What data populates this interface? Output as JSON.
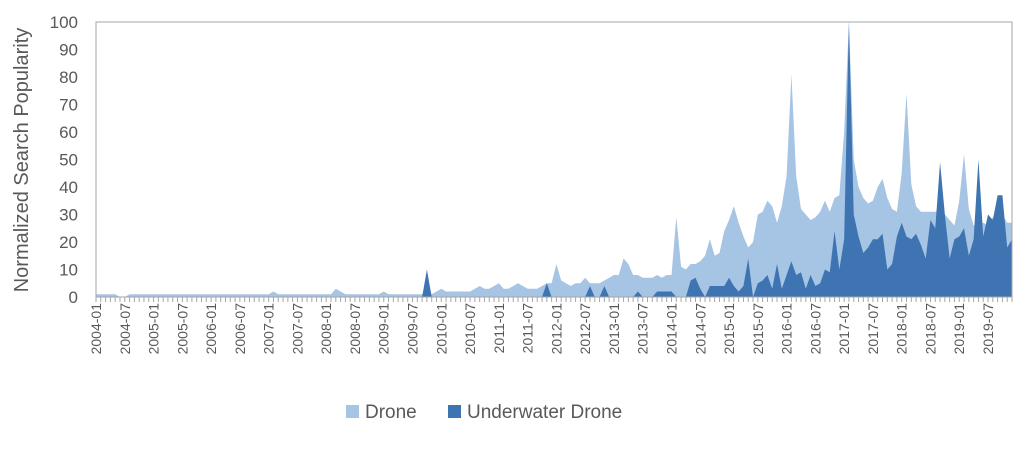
{
  "chart_data": {
    "type": "area",
    "title": "",
    "xlabel": "",
    "ylabel": "Normalized Search Popularity",
    "ylim": [
      0,
      100
    ],
    "yticks": [
      0,
      10,
      20,
      30,
      40,
      50,
      60,
      70,
      80,
      90,
      100
    ],
    "x_start": "2004-01",
    "x_end": "2019-12",
    "x_interval": "monthly",
    "xtick_labels": [
      "2004-01",
      "2004-07",
      "2005-01",
      "2005-07",
      "2006-01",
      "2006-07",
      "2007-01",
      "2007-07",
      "2008-01",
      "2008-07",
      "2009-01",
      "2009-07",
      "2010-01",
      "2010-07",
      "2011-01",
      "2011-07",
      "2012-01",
      "2012-07",
      "2013-01",
      "2013-07",
      "2014-01",
      "2014-07",
      "2015-01",
      "2015-07",
      "2016-01",
      "2016-07",
      "2017-01",
      "2017-07",
      "2018-01",
      "2018-07",
      "2019-01",
      "2019-07"
    ],
    "grid": false,
    "legend_position": "bottom",
    "series": [
      {
        "name": "Drone",
        "color": "#a6c4e4",
        "values": [
          1,
          1,
          1,
          1,
          1,
          0,
          0,
          1,
          1,
          1,
          1,
          1,
          1,
          1,
          1,
          1,
          1,
          1,
          1,
          1,
          1,
          1,
          1,
          1,
          1,
          1,
          1,
          1,
          1,
          1,
          1,
          1,
          1,
          1,
          1,
          1,
          1,
          2,
          1,
          1,
          1,
          1,
          1,
          1,
          1,
          1,
          1,
          1,
          1,
          1,
          3,
          2,
          1,
          1,
          1,
          1,
          1,
          1,
          1,
          1,
          2,
          1,
          1,
          1,
          1,
          1,
          1,
          1,
          1,
          3,
          1,
          2,
          3,
          2,
          2,
          2,
          2,
          2,
          2,
          3,
          4,
          3,
          3,
          4,
          5,
          3,
          3,
          4,
          5,
          4,
          3,
          3,
          3,
          4,
          5,
          5,
          12,
          6,
          5,
          4,
          5,
          5,
          7,
          5,
          5,
          5,
          6,
          7,
          8,
          8,
          14,
          12,
          8,
          8,
          7,
          7,
          7,
          8,
          7,
          8,
          8,
          29,
          11,
          10,
          12,
          12,
          13,
          15,
          21,
          15,
          16,
          24,
          28,
          33,
          27,
          22,
          18,
          20,
          30,
          31,
          35,
          33,
          27,
          33,
          44,
          81,
          44,
          32,
          30,
          28,
          29,
          31,
          35,
          31,
          36,
          37,
          60,
          100,
          50,
          40,
          36,
          34,
          35,
          40,
          43,
          36,
          32,
          31,
          45,
          74,
          41,
          33,
          31,
          31,
          31,
          31,
          32,
          30,
          28,
          26,
          35,
          52,
          32,
          26,
          27,
          27,
          26,
          29,
          30,
          30,
          27,
          27
        ]
      },
      {
        "name": "Underwater Drone",
        "color": "#3f74b2",
        "values": [
          0,
          0,
          0,
          0,
          0,
          0,
          0,
          0,
          0,
          0,
          0,
          0,
          0,
          0,
          0,
          0,
          0,
          0,
          0,
          0,
          0,
          0,
          0,
          0,
          0,
          0,
          0,
          0,
          0,
          0,
          0,
          0,
          0,
          0,
          0,
          0,
          0,
          0,
          0,
          0,
          0,
          0,
          0,
          0,
          0,
          0,
          0,
          0,
          0,
          0,
          0,
          0,
          0,
          0,
          0,
          0,
          0,
          0,
          0,
          0,
          0,
          0,
          0,
          0,
          0,
          0,
          0,
          0,
          0,
          10,
          0,
          0,
          0,
          0,
          0,
          0,
          0,
          0,
          0,
          0,
          0,
          0,
          0,
          0,
          0,
          0,
          0,
          0,
          0,
          0,
          0,
          0,
          0,
          0,
          5,
          0,
          0,
          0,
          0,
          0,
          0,
          0,
          0,
          4,
          0,
          0,
          4,
          0,
          0,
          0,
          0,
          0,
          0,
          2,
          0,
          0,
          0,
          2,
          2,
          2,
          2,
          0,
          0,
          0,
          6,
          7,
          3,
          0,
          4,
          4,
          4,
          4,
          7,
          4,
          2,
          4,
          14,
          0,
          5,
          6,
          8,
          3,
          12,
          3,
          8,
          13,
          8,
          9,
          3,
          8,
          4,
          5,
          10,
          9,
          24,
          10,
          21,
          100,
          30,
          22,
          16,
          18,
          21,
          21,
          23,
          10,
          12,
          22,
          27,
          22,
          21,
          23,
          19,
          14,
          28,
          25,
          49,
          30,
          14,
          21,
          22,
          25,
          15,
          21,
          50,
          22,
          30,
          28,
          37,
          37,
          18,
          21
        ]
      }
    ]
  }
}
